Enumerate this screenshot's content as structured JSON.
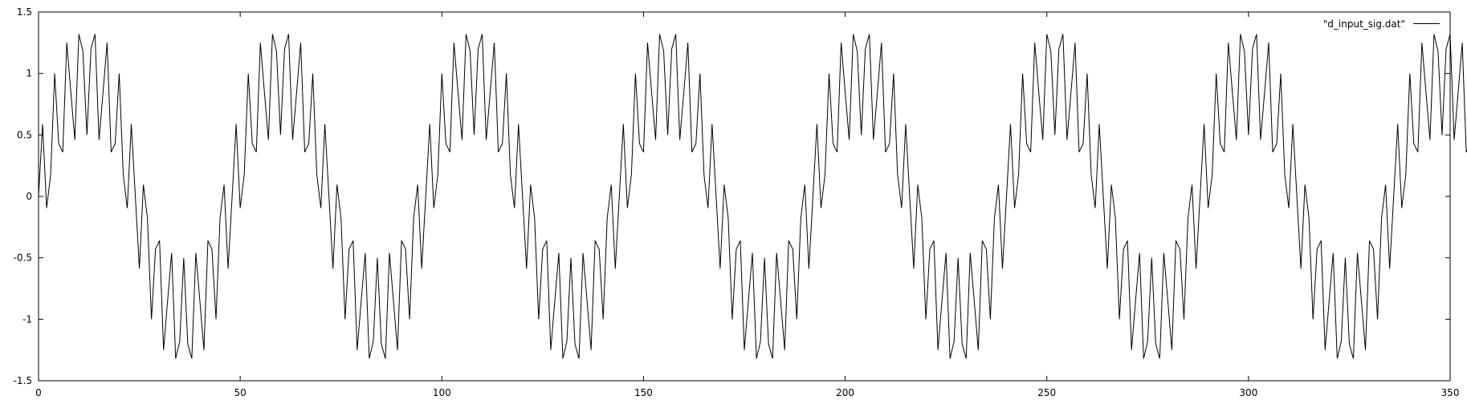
{
  "chart_data": {
    "type": "line",
    "title": "",
    "xlabel": "",
    "ylabel": "",
    "xlim": [
      0,
      350
    ],
    "ylim": [
      -1.5,
      1.5
    ],
    "x_ticks": [
      "0",
      "50",
      "100",
      "150",
      "200",
      "250",
      "300",
      "350"
    ],
    "y_ticks": [
      "1.5",
      "1",
      "0.5",
      "0",
      "-0.5",
      "-1",
      "-1.5"
    ],
    "grid": false,
    "legend_position": "top-right",
    "series": [
      {
        "name": "\"d_input_sig.dat\"",
        "color": "#000000",
        "x_start": 0,
        "x_step": 1,
        "values": [
          0,
          0.588,
          -0.095,
          0.176,
          1.0,
          0.43,
          0.36,
          1.25,
          0.85,
          0.46,
          1.32,
          1.18,
          0.5,
          1.2,
          1.32,
          0.46,
          0.85,
          1.25,
          0.36,
          0.43,
          1.0,
          0.176,
          -0.095,
          0.588,
          0,
          -0.588,
          0.095,
          -0.176,
          -1.0,
          -0.43,
          -0.36,
          -1.25,
          -0.85,
          -0.46,
          -1.32,
          -1.18,
          -0.5,
          -1.2,
          -1.32,
          -0.46,
          -0.85,
          -1.25,
          -0.36,
          -0.43,
          -1.0,
          -0.176,
          0.095,
          -0.588,
          0,
          0.588,
          -0.095,
          0.176,
          1.0,
          0.43,
          0.36,
          1.25,
          0.85,
          0.46,
          1.32,
          1.18,
          0.5,
          1.2,
          1.32,
          0.46,
          0.85,
          1.25,
          0.36,
          0.43,
          1.0,
          0.176,
          -0.095,
          0.588,
          0,
          -0.588,
          0.095,
          -0.176,
          -1.0,
          -0.43,
          -0.36,
          -1.25,
          -0.85,
          -0.46,
          -1.32,
          -1.18,
          -0.5,
          -1.2,
          -1.32,
          -0.46,
          -0.85,
          -1.25,
          -0.36,
          -0.43,
          -1.0,
          -0.176,
          0.095,
          -0.588,
          0,
          0.588,
          -0.095,
          0.176,
          1.0,
          0.43,
          0.36,
          1.25,
          0.85,
          0.46,
          1.32,
          1.18,
          0.5,
          1.2,
          1.32,
          0.46,
          0.85,
          1.25,
          0.36,
          0.43,
          1.0,
          0.176,
          -0.095,
          0.588,
          0,
          -0.588,
          0.095,
          -0.176,
          -1.0,
          -0.43,
          -0.36,
          -1.25,
          -0.85,
          -0.46,
          -1.32,
          -1.18,
          -0.5,
          -1.2,
          -1.32,
          -0.46,
          -0.85,
          -1.25,
          -0.36,
          -0.43,
          -1.0,
          -0.176,
          0.095,
          -0.588,
          0,
          0.588,
          -0.095,
          0.176,
          1.0,
          0.43,
          0.36,
          1.25,
          0.85,
          0.46,
          1.32,
          1.18,
          0.5,
          1.2,
          1.32,
          0.46,
          0.85,
          1.25,
          0.36,
          0.43,
          1.0,
          0.176,
          -0.095,
          0.588,
          0,
          -0.588,
          0.095,
          -0.176,
          -1.0,
          -0.43,
          -0.36,
          -1.25,
          -0.85,
          -0.46,
          -1.32,
          -1.18,
          -0.5,
          -1.2,
          -1.32,
          -0.46,
          -0.85,
          -1.25,
          -0.36,
          -0.43,
          -1.0,
          -0.176,
          0.095,
          -0.588,
          0,
          0.588,
          -0.095,
          0.176,
          1.0,
          0.43,
          0.36,
          1.25,
          0.85,
          0.46,
          1.32,
          1.18,
          0.5,
          1.2,
          1.32,
          0.46,
          0.85,
          1.25,
          0.36,
          0.43,
          1.0,
          0.176,
          -0.095,
          0.588,
          0,
          -0.588,
          0.095,
          -0.176,
          -1.0,
          -0.43,
          -0.36,
          -1.25,
          -0.85,
          -0.46,
          -1.32,
          -1.18,
          -0.5,
          -1.2,
          -1.32,
          -0.46,
          -0.85,
          -1.25,
          -0.36,
          -0.43,
          -1.0,
          -0.176,
          0.095,
          -0.588,
          0,
          0.588,
          -0.095,
          0.176,
          1.0,
          0.43,
          0.36,
          1.25,
          0.85,
          0.46,
          1.32,
          1.18,
          0.5,
          1.2,
          1.32,
          0.46,
          0.85,
          1.25,
          0.36,
          0.43,
          1.0,
          0.176,
          -0.095,
          0.588,
          0,
          -0.588,
          0.095,
          -0.176,
          -1.0,
          -0.43,
          -0.36,
          -1.25,
          -0.85,
          -0.46,
          -1.32,
          -1.18,
          -0.5,
          -1.2,
          -1.32,
          -0.46,
          -0.85,
          -1.25,
          -0.36,
          -0.43,
          -1.0,
          -0.176,
          0.095,
          -0.588,
          0,
          0.588,
          -0.095,
          0.176,
          1.0,
          0.43,
          0.36,
          1.25,
          0.85,
          0.46,
          1.32,
          1.18,
          0.5,
          1.2,
          1.32,
          0.46,
          0.85,
          1.25,
          0.36,
          0.43,
          1.0,
          0.176,
          -0.095,
          0.588,
          0,
          -0.588,
          0.095,
          -0.176,
          -1.0,
          -0.43,
          -0.36,
          -1.25,
          -0.85,
          -0.46,
          -1.32,
          -1.18,
          -0.5,
          -1.2,
          -1.32,
          -0.46,
          -0.85,
          -1.25,
          -0.36,
          -0.43,
          -1.0,
          -0.176,
          0.095,
          -0.588,
          0,
          0.588,
          -0.095,
          0.176,
          1.0,
          0.43,
          0.36,
          1.25,
          0.85,
          0.46,
          1.32,
          1.18,
          0.5,
          1.2,
          1.32,
          0.46,
          0.85,
          1.25,
          0.36,
          0.43,
          1.0,
          0.176,
          -0.095,
          0.588,
          0,
          -0.588,
          0.095,
          -0.176,
          -1.0,
          -0.43,
          -0.36,
          -1.25
        ]
      }
    ]
  }
}
